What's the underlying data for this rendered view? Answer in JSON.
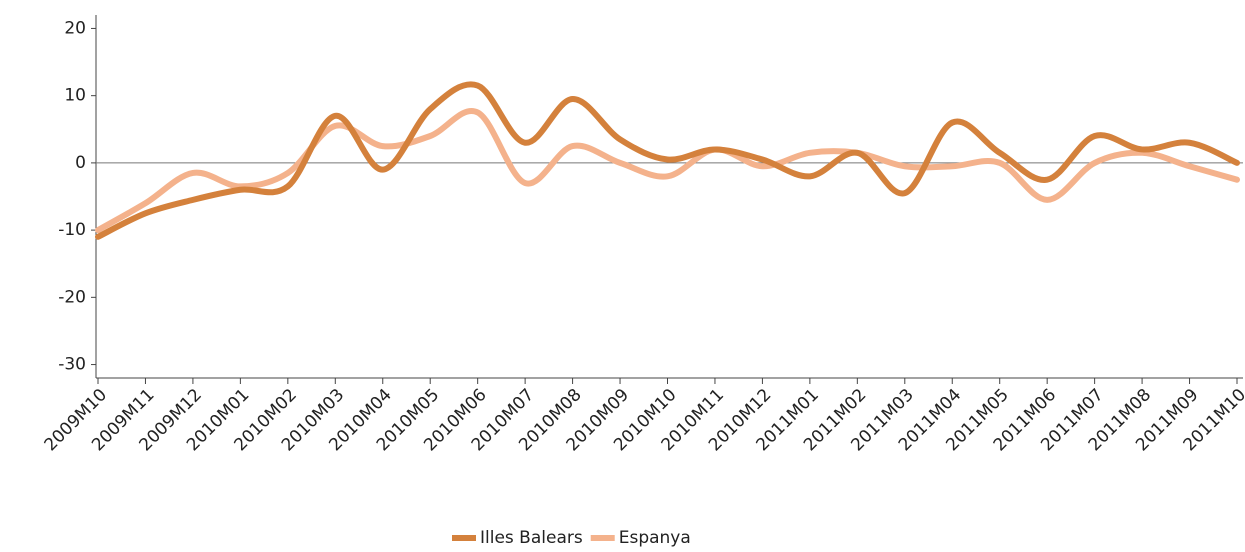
{
  "chart_data": {
    "type": "line",
    "categories": [
      "2009M10",
      "2009M11",
      "2009M12",
      "2010M01",
      "2010M02",
      "2010M03",
      "2010M04",
      "2010M05",
      "2010M06",
      "2010M07",
      "2010M08",
      "2010M09",
      "2010M10",
      "2010M11",
      "2010M12",
      "2011M01",
      "2011M02",
      "2011M03",
      "2011M04",
      "2011M05",
      "2011M06",
      "2011M07",
      "2011M08",
      "2011M09",
      "2011M10"
    ],
    "series": [
      {
        "name": "Illes Balears",
        "color": "#d4813c",
        "values": [
          -11,
          -7.5,
          -5.5,
          -4,
          -3.5,
          7,
          -1,
          8,
          11.5,
          3,
          9.5,
          3.5,
          0.5,
          2,
          0.5,
          -2,
          1.5,
          -4.5,
          6,
          1.5,
          -2.5,
          4,
          2,
          3,
          0
        ]
      },
      {
        "name": "Espanya",
        "color": "#f4b28c",
        "values": [
          -10,
          -6,
          -1.5,
          -3.5,
          -1.5,
          5.5,
          2.5,
          4,
          7.5,
          -3,
          2.5,
          0,
          -2,
          2,
          -0.5,
          1.5,
          1.5,
          -0.5,
          -0.5,
          0,
          -5.5,
          0,
          1.5,
          -0.5,
          -2.5
        ]
      }
    ],
    "ylim": [
      -32,
      22
    ],
    "yticks": [
      -30,
      -20,
      -10,
      0,
      10,
      20
    ],
    "legend": "bottom"
  }
}
